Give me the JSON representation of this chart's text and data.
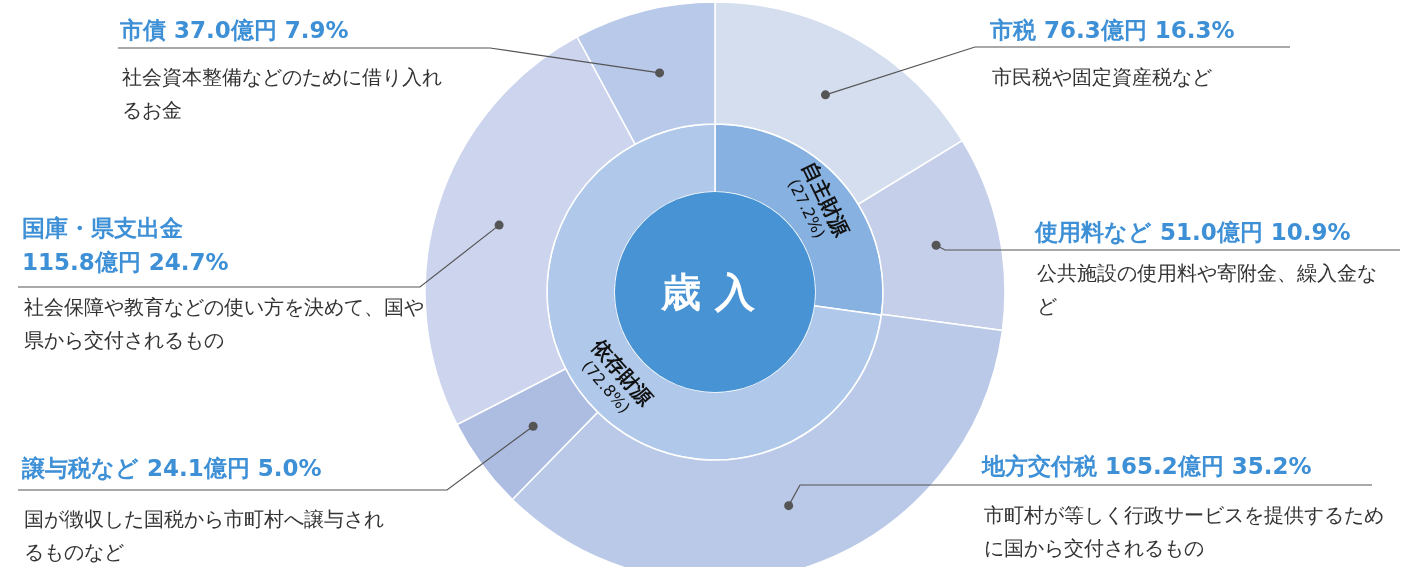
{
  "chart_data": [
    {
      "type": "donut",
      "title": "歳入",
      "categories": [
        "自主財源",
        "依存財源"
      ],
      "values": [
        27.2,
        72.8
      ],
      "value_labels": [
        "(27.2%)",
        "(72.8%)"
      ],
      "colors": [
        "#86b1e0",
        "#b0c9ea"
      ]
    },
    {
      "type": "donut",
      "categories": [
        "市税",
        "使用料など",
        "地方交付税",
        "譲与税など",
        "国庫・県支出金",
        "市債"
      ],
      "values": [
        76.3,
        51.0,
        165.2,
        24.1,
        115.8,
        37.0
      ],
      "value_labels": [
        "76.3億円  16.3%",
        "51.0億円  10.9%",
        "165.2億円  35.2%",
        "24.1億円  5.0%",
        "115.8億円  24.7%",
        "37.0億円  7.9%"
      ],
      "colors": [
        "#d5deef",
        "#c5cfea",
        "#b9c9e7",
        "#adbde2",
        "#cdd5ee",
        "#b8c9ea"
      ],
      "annotations": [
        "市民税や固定資産税など",
        "公共施設の使用料や寄附金、繰入金など",
        "市町村が等しく行政サービスを提供するために国から交付されるもの",
        "国が徴収した国税から市町村へ譲与されるものなど",
        "社会保障や教育などの使い方を決めて、国や県から交付されるもの",
        "社会資本整備などのために借り入れるお金"
      ]
    }
  ]
}
